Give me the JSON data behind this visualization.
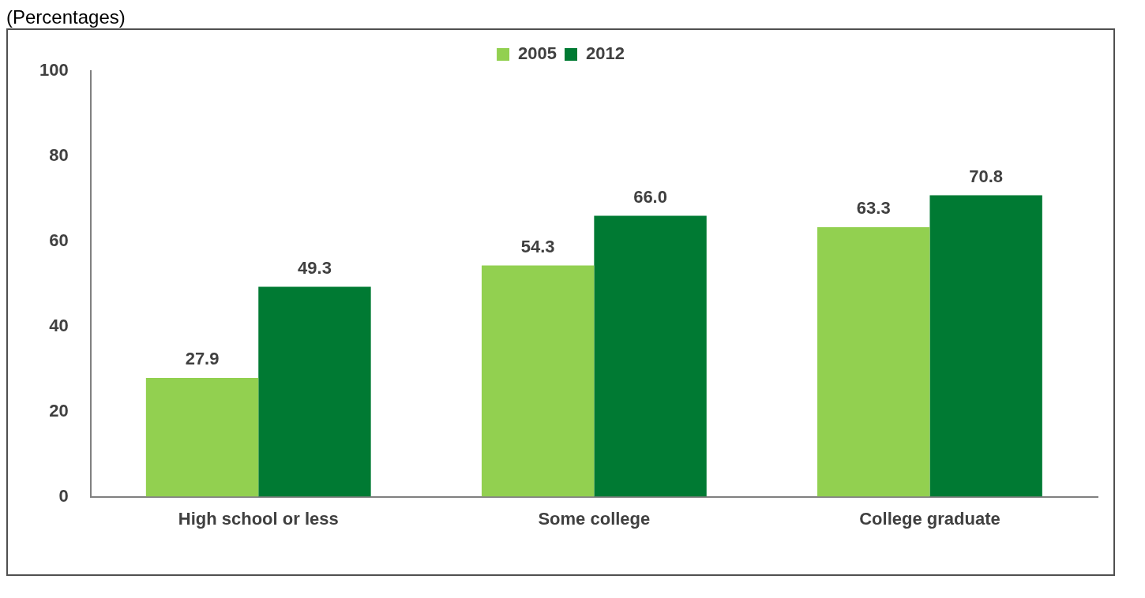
{
  "chart_data": {
    "type": "bar",
    "subtitle": "(Percentages)",
    "categories": [
      "High school or less",
      "Some college",
      "College graduate"
    ],
    "series": [
      {
        "name": "2005",
        "color": "#92d050",
        "values": [
          27.9,
          54.3,
          63.3
        ],
        "value_labels": [
          "27.9",
          "54.3",
          "63.3"
        ]
      },
      {
        "name": "2012",
        "color": "#007a33",
        "values": [
          49.3,
          66.0,
          70.8
        ],
        "value_labels": [
          "49.3",
          "66.0",
          "70.8"
        ]
      }
    ],
    "ylim": [
      0,
      100
    ],
    "yticks": [
      0,
      20,
      40,
      60,
      80,
      100
    ],
    "grid": false,
    "legend": "top"
  }
}
